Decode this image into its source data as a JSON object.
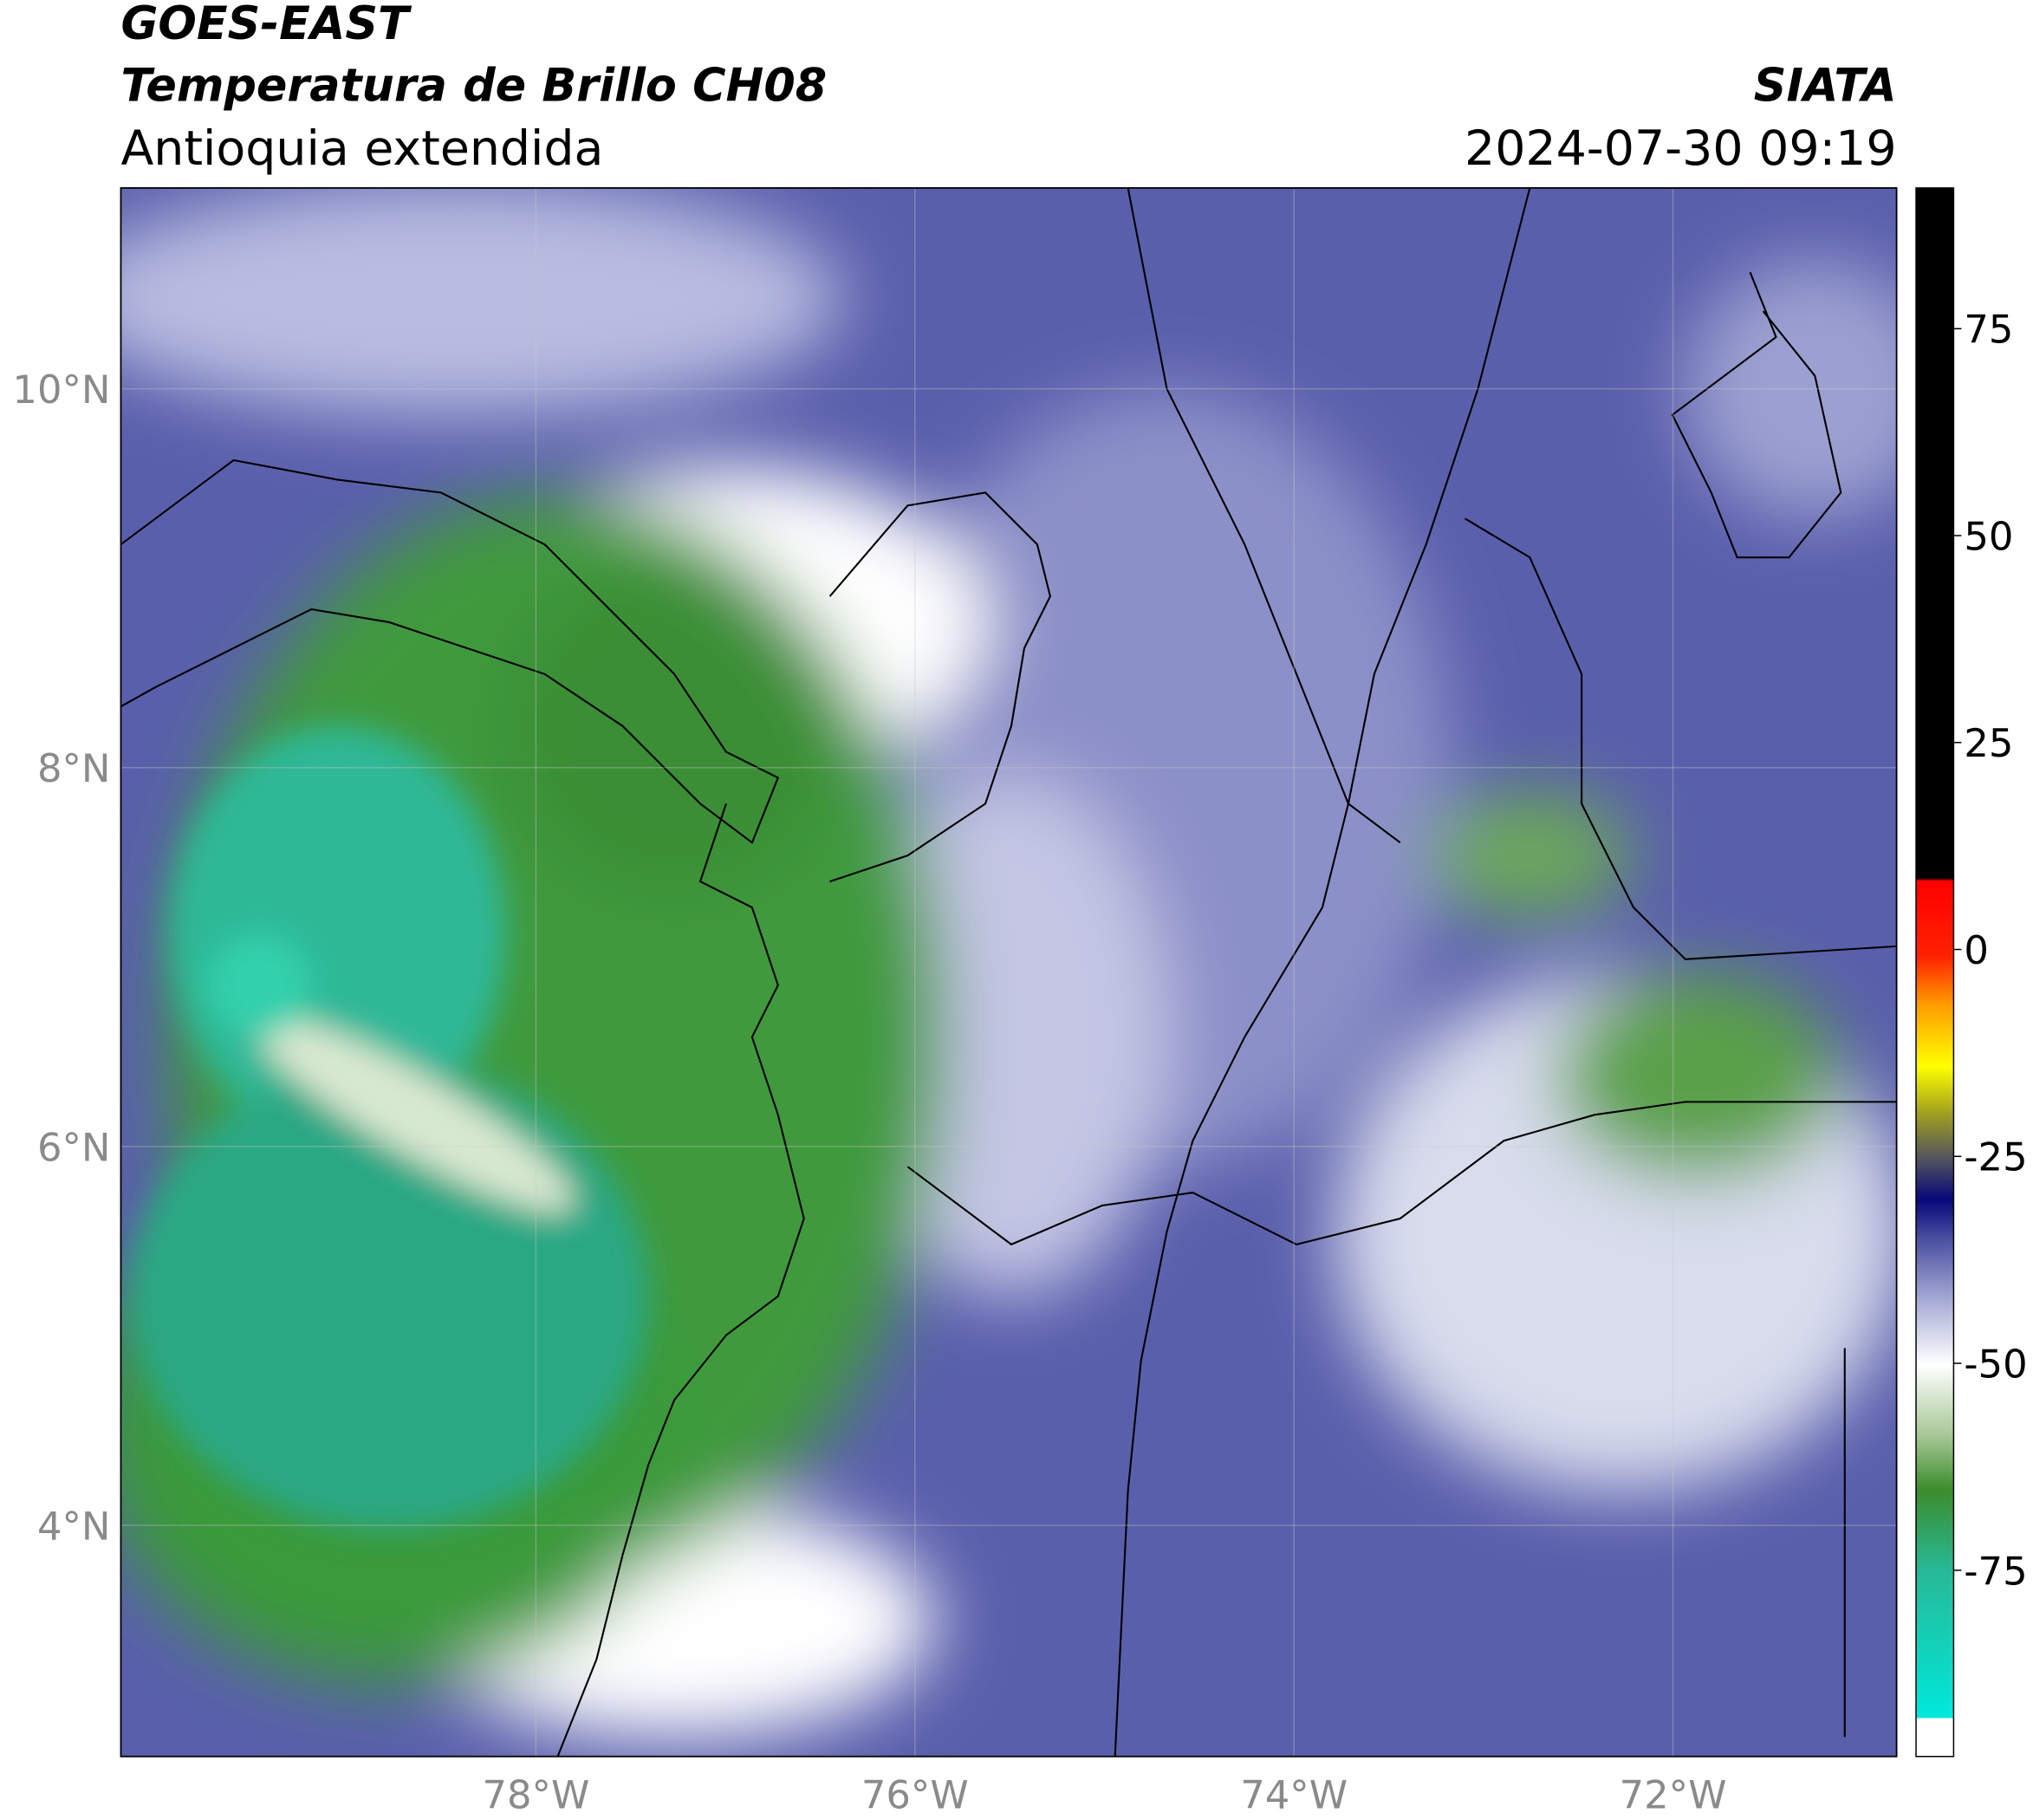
{
  "header": {
    "title": "GOES-EAST",
    "subtitle": "Temperatura de Brillo CH08",
    "region": "Antioquia extendida",
    "source": "SIATA",
    "datetime": "2024-07-30 09:19"
  },
  "map": {
    "xlim": [
      -80.19,
      -70.82
    ],
    "ylim": [
      2.78,
      11.06
    ],
    "xticks": [
      {
        "value": -78,
        "label": "78°W"
      },
      {
        "value": -76,
        "label": "76°W"
      },
      {
        "value": -74,
        "label": "74°W"
      },
      {
        "value": -72,
        "label": "72°W"
      }
    ],
    "yticks": [
      {
        "value": 4,
        "label": "4°N"
      },
      {
        "value": 6,
        "label": "6°N"
      },
      {
        "value": 8,
        "label": "8°N"
      },
      {
        "value": 10,
        "label": "10°N"
      }
    ],
    "grid": true
  },
  "colorbar": {
    "lim": [
      -97.5,
      92
    ],
    "ticks": [
      -75,
      -50,
      -25,
      0,
      25,
      50,
      75
    ]
  }
}
